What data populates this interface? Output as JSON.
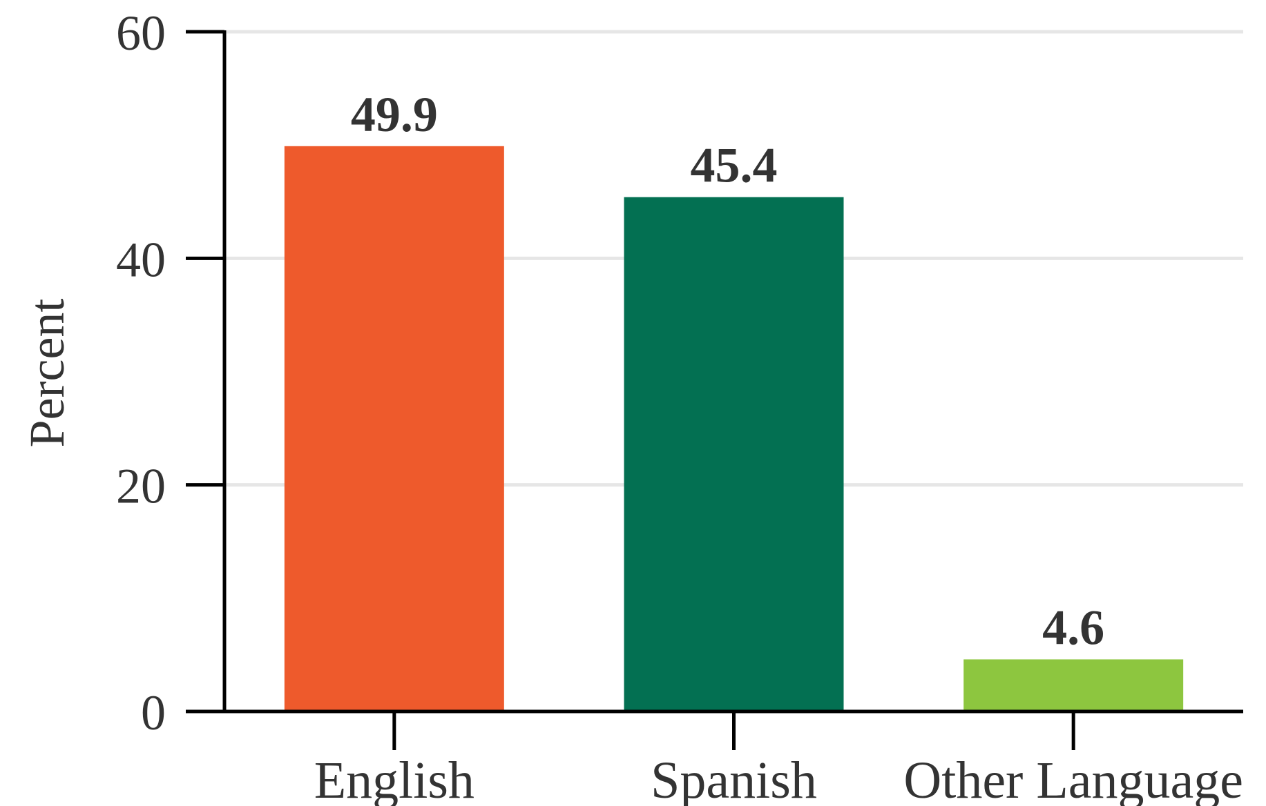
{
  "chart_data": {
    "type": "bar",
    "categories": [
      "English",
      "Spanish",
      "Other Language"
    ],
    "values": [
      49.9,
      45.4,
      4.6
    ],
    "value_labels": [
      "49.9",
      "45.4",
      "4.6"
    ],
    "colors": [
      "#ee5a2c",
      "#037052",
      "#8dc63f"
    ],
    "ylabel": "Percent",
    "xlabel": "",
    "ylim": [
      0,
      60
    ],
    "yticks": [
      0,
      20,
      40,
      60
    ],
    "ytick_labels": [
      "0",
      "20",
      "40",
      "60"
    ],
    "grid": true,
    "grid_color": "#e6e6e6",
    "axis_color": "#000000",
    "text_color": "#333333"
  }
}
